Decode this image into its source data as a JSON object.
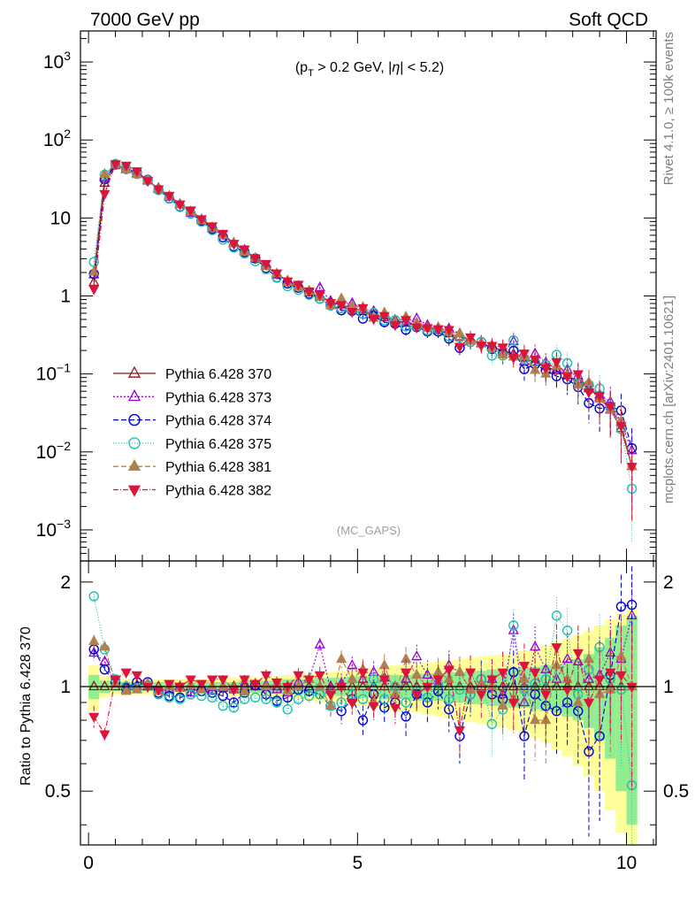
{
  "header": {
    "left": "7000 GeV pp",
    "right": "Soft QCD"
  },
  "side_text": {
    "rivet": "Rivet 4.1.0, ≥ 100k events",
    "mcplots": "mcplots.cern.ch [arXiv:2401.10621]"
  },
  "chart_data": {
    "type": "line",
    "annotation_cut": "(p_T > 0.2 GeV, |η| < 5.2)",
    "analysis_label": "(MC_GAPS)",
    "ratio_ylabel": "Ratio to Pythia 6.428 370",
    "xlim": [
      -0.15,
      10.55
    ],
    "main_ylim": [
      0.0004,
      2500
    ],
    "ratio_ylim": [
      0.35,
      2.3
    ],
    "x_ticks": [
      "0",
      "5",
      "10"
    ],
    "main_y_ticks": [
      "10^-3",
      "10^-2",
      "10^-1",
      "1",
      "10",
      "10^2",
      "10^3"
    ],
    "ratio_y_ticks": [
      "0.5",
      "1",
      "2"
    ],
    "legend_position": "center-left",
    "x": [
      0.1,
      0.3,
      0.5,
      0.7,
      0.9,
      1.1,
      1.3,
      1.5,
      1.7,
      1.9,
      2.1,
      2.3,
      2.5,
      2.7,
      2.9,
      3.1,
      3.3,
      3.5,
      3.7,
      3.9,
      4.1,
      4.3,
      4.5,
      4.7,
      4.9,
      5.1,
      5.3,
      5.5,
      5.7,
      5.9,
      6.1,
      6.3,
      6.5,
      6.7,
      6.9,
      7.1,
      7.3,
      7.5,
      7.7,
      7.9,
      8.1,
      8.3,
      8.5,
      8.7,
      8.9,
      9.1,
      9.3,
      9.5,
      9.7,
      9.9,
      10.1
    ],
    "reference": [
      1.5,
      28,
      47,
      43,
      37,
      30,
      24,
      19,
      15,
      12,
      9.5,
      7.5,
      6.0,
      4.8,
      3.8,
      3.0,
      2.4,
      1.9,
      1.55,
      1.3,
      1.1,
      0.97,
      0.86,
      0.77,
      0.7,
      0.64,
      0.58,
      0.53,
      0.49,
      0.45,
      0.42,
      0.39,
      0.36,
      0.33,
      0.3,
      0.27,
      0.245,
      0.22,
      0.2,
      0.18,
      0.16,
      0.14,
      0.125,
      0.11,
      0.095,
      0.08,
      0.065,
      0.05,
      0.035,
      0.02,
      0.0065
    ],
    "ratio_band_inner": [
      0.08,
      0.04,
      0.03,
      0.03,
      0.03,
      0.03,
      0.03,
      0.03,
      0.03,
      0.03,
      0.03,
      0.03,
      0.03,
      0.03,
      0.04,
      0.04,
      0.04,
      0.04,
      0.05,
      0.05,
      0.05,
      0.06,
      0.06,
      0.06,
      0.07,
      0.07,
      0.07,
      0.08,
      0.08,
      0.08,
      0.09,
      0.09,
      0.09,
      0.1,
      0.1,
      0.11,
      0.11,
      0.12,
      0.12,
      0.13,
      0.13,
      0.14,
      0.15,
      0.16,
      0.18,
      0.2,
      0.24,
      0.3,
      0.38,
      0.5,
      0.6
    ],
    "ratio_band_outer": [
      0.15,
      0.07,
      0.05,
      0.05,
      0.05,
      0.05,
      0.05,
      0.05,
      0.05,
      0.05,
      0.05,
      0.05,
      0.05,
      0.06,
      0.06,
      0.06,
      0.07,
      0.07,
      0.08,
      0.08,
      0.09,
      0.1,
      0.1,
      0.11,
      0.12,
      0.12,
      0.13,
      0.14,
      0.15,
      0.15,
      0.16,
      0.17,
      0.18,
      0.19,
      0.2,
      0.21,
      0.22,
      0.23,
      0.24,
      0.25,
      0.27,
      0.29,
      0.31,
      0.34,
      0.37,
      0.41,
      0.45,
      0.5,
      0.56,
      0.62,
      0.7
    ],
    "series": [
      {
        "name": "Pythia 6.428 370",
        "color": "#8b1a1a",
        "marker": "triangle-up-open",
        "dash": "",
        "ratio": [
          1.0,
          1.0,
          1.0,
          1.0,
          1.0,
          1.0,
          1.0,
          1.0,
          1.0,
          1.0,
          1.0,
          1.0,
          1.0,
          1.0,
          1.0,
          1.0,
          1.0,
          1.0,
          1.0,
          1.0,
          1.0,
          1.0,
          1.0,
          1.0,
          1.0,
          1.0,
          1.0,
          1.0,
          1.0,
          1.0,
          1.0,
          1.0,
          1.0,
          1.0,
          1.0,
          1.0,
          1.0,
          1.0,
          1.0,
          1.0,
          1.0,
          1.0,
          1.0,
          1.0,
          1.0,
          1.0,
          1.0,
          1.0,
          1.0,
          1.0,
          1.0
        ],
        "ratio_err": [
          0.06,
          0.03,
          0.02,
          0.02,
          0.02,
          0.02,
          0.02,
          0.02,
          0.02,
          0.02,
          0.02,
          0.02,
          0.03,
          0.03,
          0.03,
          0.03,
          0.04,
          0.04,
          0.04,
          0.05,
          0.05,
          0.06,
          0.06,
          0.07,
          0.07,
          0.08,
          0.08,
          0.09,
          0.09,
          0.1,
          0.1,
          0.11,
          0.11,
          0.12,
          0.12,
          0.13,
          0.14,
          0.15,
          0.16,
          0.17,
          0.18,
          0.19,
          0.2,
          0.21,
          0.23,
          0.25,
          0.28,
          0.31,
          0.35,
          0.4,
          0.5
        ]
      },
      {
        "name": "Pythia 6.428 373",
        "color": "#9400d3",
        "marker": "triangle-up-open",
        "dash": "2,2",
        "ratio": [
          1.25,
          1.18,
          1.02,
          0.98,
          1.01,
          1.02,
          0.97,
          0.98,
          0.99,
          0.96,
          1.0,
          0.97,
          0.99,
          0.98,
          1.02,
          1.0,
          1.01,
          0.98,
          0.96,
          1.03,
          1.05,
          1.32,
          0.98,
          1.02,
          1.15,
          1.05,
          1.1,
          1.06,
          0.95,
          1.05,
          1.22,
          1.08,
          1.02,
          1.15,
          1.1,
          0.98,
          1.02,
          1.05,
          0.95,
          1.45,
          0.9,
          1.3,
          1.12,
          1.05,
          1.2,
          1.18,
          1.05,
          1.08,
          1.25,
          1.2,
          1.6
        ],
        "ratio_err": [
          0.06,
          0.03,
          0.02,
          0.02,
          0.02,
          0.02,
          0.02,
          0.02,
          0.02,
          0.02,
          0.02,
          0.02,
          0.03,
          0.03,
          0.03,
          0.03,
          0.04,
          0.04,
          0.04,
          0.05,
          0.05,
          0.06,
          0.06,
          0.07,
          0.07,
          0.08,
          0.08,
          0.09,
          0.09,
          0.1,
          0.1,
          0.11,
          0.11,
          0.12,
          0.12,
          0.13,
          0.14,
          0.15,
          0.16,
          0.17,
          0.18,
          0.19,
          0.2,
          0.21,
          0.23,
          0.25,
          0.28,
          0.31,
          0.35,
          0.4,
          0.5
        ]
      },
      {
        "name": "Pythia 6.428 374",
        "color": "#0000cd",
        "marker": "circle-open",
        "dash": "6,3",
        "ratio": [
          1.28,
          1.12,
          1.03,
          0.99,
          1.03,
          1.03,
          0.96,
          0.94,
          0.93,
          0.95,
          0.97,
          0.96,
          0.94,
          0.9,
          0.96,
          1.01,
          0.95,
          0.91,
          0.93,
          0.98,
          0.97,
          0.95,
          0.88,
          0.85,
          0.92,
          0.8,
          0.95,
          0.87,
          0.9,
          0.82,
          0.95,
          0.9,
          0.97,
          0.86,
          0.72,
          0.95,
          1.05,
          0.95,
          0.92,
          1.1,
          0.72,
          0.95,
          0.88,
          0.85,
          0.9,
          0.85,
          0.65,
          0.72,
          1.08,
          1.7,
          1.72
        ],
        "ratio_err": [
          0.06,
          0.03,
          0.02,
          0.02,
          0.02,
          0.02,
          0.02,
          0.02,
          0.02,
          0.02,
          0.02,
          0.02,
          0.03,
          0.03,
          0.03,
          0.03,
          0.04,
          0.04,
          0.04,
          0.05,
          0.05,
          0.06,
          0.06,
          0.07,
          0.07,
          0.08,
          0.08,
          0.09,
          0.09,
          0.1,
          0.1,
          0.11,
          0.11,
          0.12,
          0.12,
          0.13,
          0.14,
          0.15,
          0.16,
          0.17,
          0.18,
          0.19,
          0.2,
          0.21,
          0.23,
          0.25,
          0.28,
          0.31,
          0.35,
          0.4,
          0.5
        ]
      },
      {
        "name": "Pythia 6.428 375",
        "color": "#20c0b0",
        "marker": "circle-open",
        "dash": "1,2",
        "ratio": [
          1.82,
          1.28,
          1.05,
          1.0,
          0.99,
          1.01,
          0.95,
          0.93,
          0.92,
          0.95,
          0.94,
          0.93,
          0.88,
          0.87,
          0.92,
          0.93,
          0.92,
          0.9,
          0.86,
          0.92,
          0.94,
          0.95,
          0.88,
          0.9,
          0.95,
          0.92,
          1.05,
          0.92,
          1.0,
          0.9,
          0.97,
          0.93,
          1.02,
          0.92,
          0.98,
          0.95,
          1.05,
          0.78,
          0.86,
          1.5,
          0.98,
          1.02,
          1.05,
          1.6,
          1.45,
          0.95,
          1.12,
          1.3,
          1.05,
          0.98,
          0.52
        ],
        "ratio_err": [
          0.06,
          0.03,
          0.02,
          0.02,
          0.02,
          0.02,
          0.02,
          0.02,
          0.02,
          0.02,
          0.02,
          0.02,
          0.03,
          0.03,
          0.03,
          0.03,
          0.04,
          0.04,
          0.04,
          0.05,
          0.05,
          0.06,
          0.06,
          0.07,
          0.07,
          0.08,
          0.08,
          0.09,
          0.09,
          0.1,
          0.1,
          0.11,
          0.11,
          0.12,
          0.12,
          0.13,
          0.14,
          0.15,
          0.16,
          0.17,
          0.18,
          0.19,
          0.2,
          0.21,
          0.23,
          0.25,
          0.28,
          0.31,
          0.35,
          0.4,
          0.5
        ]
      },
      {
        "name": "Pythia 6.428 381",
        "color": "#b08050",
        "marker": "triangle-up-filled",
        "dash": "6,3",
        "ratio": [
          1.35,
          1.3,
          1.02,
          0.97,
          0.98,
          1.02,
          0.97,
          1.0,
          0.99,
          1.01,
          0.98,
          1.0,
          1.0,
          0.99,
          0.97,
          1.02,
          1.0,
          1.02,
          0.97,
          1.0,
          1.05,
          1.0,
          0.88,
          1.2,
          1.05,
          1.12,
          0.9,
          1.15,
          0.95,
          1.2,
          1.08,
          1.0,
          1.1,
          1.05,
          1.1,
          0.98,
          1.02,
          1.0,
          0.88,
          0.92,
          1.05,
          0.8,
          0.8,
          1.15,
          1.05,
          0.9,
          1.2,
          0.95,
          0.98,
          1.22,
          1.0
        ],
        "ratio_err": [
          0.06,
          0.03,
          0.02,
          0.02,
          0.02,
          0.02,
          0.02,
          0.02,
          0.02,
          0.02,
          0.02,
          0.02,
          0.03,
          0.03,
          0.03,
          0.03,
          0.04,
          0.04,
          0.04,
          0.05,
          0.05,
          0.06,
          0.06,
          0.07,
          0.07,
          0.08,
          0.08,
          0.09,
          0.09,
          0.1,
          0.1,
          0.11,
          0.11,
          0.12,
          0.12,
          0.13,
          0.14,
          0.15,
          0.16,
          0.17,
          0.18,
          0.19,
          0.2,
          0.21,
          0.23,
          0.25,
          0.28,
          0.31,
          0.35,
          0.4,
          0.5
        ]
      },
      {
        "name": "Pythia 6.428 382",
        "color": "#dc143c",
        "marker": "triangle-down-filled",
        "dash": "6,2,1,2",
        "ratio": [
          0.82,
          0.73,
          1.05,
          1.1,
          1.08,
          1.0,
          0.98,
          1.02,
          1.0,
          1.05,
          1.02,
          1.05,
          1.05,
          0.98,
          1.05,
          1.02,
          1.08,
          1.03,
          1.0,
          1.08,
          1.05,
          1.08,
          0.95,
          1.0,
          0.9,
          1.1,
          0.88,
          1.05,
          0.87,
          1.1,
          0.95,
          1.0,
          1.05,
          1.12,
          0.75,
          1.1,
          0.95,
          1.05,
          1.1,
          0.9,
          1.15,
          1.1,
          0.95,
          1.3,
          0.98,
          1.25,
          0.9,
          1.05,
          1.1,
          1.08,
          1.0
        ],
        "ratio_err": [
          0.06,
          0.03,
          0.02,
          0.02,
          0.02,
          0.02,
          0.02,
          0.02,
          0.02,
          0.02,
          0.02,
          0.02,
          0.03,
          0.03,
          0.03,
          0.03,
          0.04,
          0.04,
          0.04,
          0.05,
          0.05,
          0.06,
          0.06,
          0.07,
          0.07,
          0.08,
          0.08,
          0.09,
          0.09,
          0.1,
          0.1,
          0.11,
          0.11,
          0.12,
          0.12,
          0.13,
          0.14,
          0.15,
          0.16,
          0.17,
          0.18,
          0.19,
          0.2,
          0.21,
          0.23,
          0.25,
          0.28,
          0.31,
          0.35,
          0.4,
          0.5
        ]
      }
    ]
  }
}
